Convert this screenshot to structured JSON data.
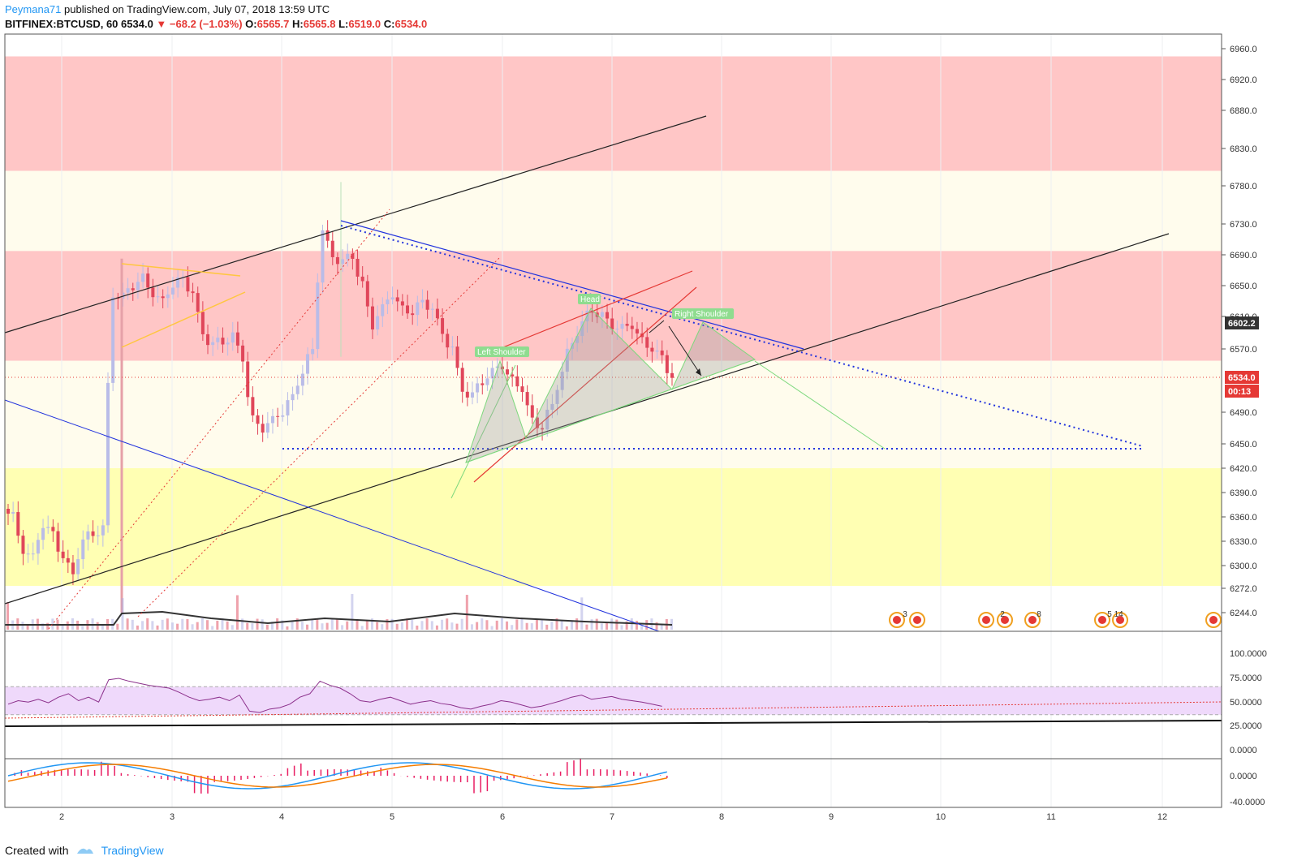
{
  "header": {
    "author": "Peymana71",
    "published_text": "published on TradingView.com, July 07, 2018 13:59 UTC",
    "symbol": "BITFINEX:BTCUSD, 60",
    "last": "6534.0",
    "change": "▼ −68.2 (−1.03%)",
    "o_label": "O:",
    "o": "6565.7",
    "h_label": "H:",
    "h": "6565.8",
    "l_label": "L:",
    "l": "6519.0",
    "c_label": "C:",
    "c": "6534.0"
  },
  "footer": {
    "created_with": "Created with",
    "brand": "TradingView"
  },
  "colors": {
    "up": "#a7a9e0",
    "down": "#e0465a",
    "up_candle": "#b9bce8",
    "resistance_zone": "#ffb3b3",
    "support_zone": "#ffff99",
    "rsi_band": "#efd9fb",
    "rsi_line": "#8b2f8b",
    "macd_line": "#2196f3",
    "signal_line": "#f57c00",
    "hist": "#e91e63"
  },
  "price_tags": {
    "current": "6534.0",
    "timer": "00:13",
    "mark": "6602.2"
  },
  "annotations": {
    "left_shoulder": "Left Shoulder",
    "head": "Head",
    "right_shoulder": "Right Shoulder"
  },
  "event_badges": [
    "3",
    "2",
    "8",
    "5 14"
  ],
  "chart_data": {
    "type": "candlestick",
    "price_axis": {
      "ticks": [
        6960.0,
        6920.0,
        6880.0,
        6830.0,
        6780.0,
        6730.0,
        6690.0,
        6650.0,
        6610.0,
        6570.0,
        6490.0,
        6450.0,
        6420.0,
        6390.0,
        6360.0,
        6330.0,
        6300.0,
        6272.0,
        6244.0
      ]
    },
    "x_axis": {
      "ticks": [
        "2",
        "3",
        "4",
        "5",
        "6",
        "7",
        "8",
        "9",
        "10",
        "11",
        "12"
      ]
    },
    "zones": [
      {
        "kind": "resistance",
        "from": 6800,
        "to": 6950
      },
      {
        "kind": "resistance",
        "from": 6555,
        "to": 6695
      },
      {
        "kind": "support",
        "from": 6275,
        "to": 6420
      }
    ],
    "close_path": [
      6360,
      6320,
      6310,
      6350,
      6340,
      6310,
      6290,
      6330,
      6340,
      6345,
      6640,
      6635,
      6650,
      6660,
      6640,
      6630,
      6650,
      6660,
      6640,
      6590,
      6575,
      6580,
      6585,
      6560,
      6480,
      6470,
      6480,
      6490,
      6510,
      6540,
      6570,
      6720,
      6690,
      6680,
      6690,
      6650,
      6600,
      6620,
      6640,
      6620,
      6615,
      6630,
      6620,
      6590,
      6570,
      6520,
      6510,
      6530,
      6540,
      6550,
      6530,
      6520,
      6480,
      6470,
      6500,
      6540,
      6580,
      6600,
      6620,
      6610,
      6600,
      6595,
      6600,
      6580,
      6570,
      6560,
      6534
    ],
    "rsi": {
      "ticks": [
        "100.0000",
        "75.0000",
        "50.0000",
        "25.0000"
      ],
      "band": [
        30,
        70
      ]
    },
    "macd": {
      "ticks": [
        "0.0000",
        "0.0000",
        "-40.0000"
      ]
    }
  }
}
